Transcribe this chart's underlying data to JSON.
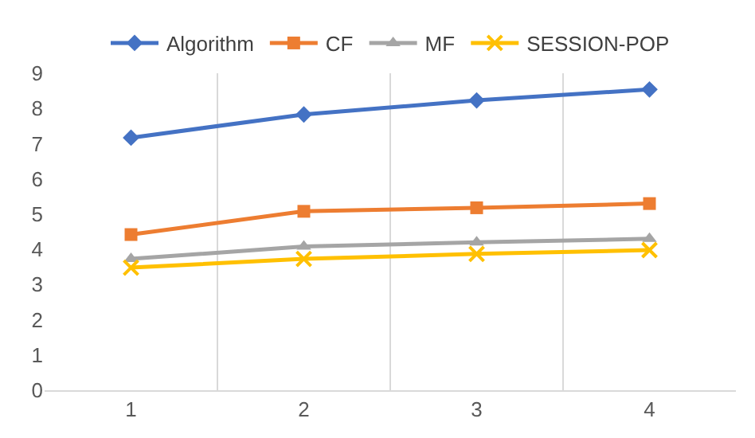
{
  "chart_data": {
    "type": "line",
    "categories": [
      "1",
      "2",
      "3",
      "4"
    ],
    "ylim": [
      0,
      9
    ],
    "yticks": [
      0,
      1,
      2,
      3,
      4,
      5,
      6,
      7,
      8,
      9
    ],
    "grid": "x",
    "legend": "top",
    "series": [
      {
        "name": "Algorithm",
        "color": "#4472c4",
        "marker": "diamond",
        "values": [
          7.17,
          7.83,
          8.23,
          8.54
        ]
      },
      {
        "name": "CF",
        "color": "#ed7d31",
        "marker": "square",
        "values": [
          4.42,
          5.08,
          5.18,
          5.3
        ]
      },
      {
        "name": "MF",
        "color": "#a5a5a5",
        "marker": "triangle",
        "values": [
          3.73,
          4.08,
          4.2,
          4.3
        ]
      },
      {
        "name": "SESSION-POP",
        "color": "#ffc000",
        "marker": "cross",
        "values": [
          3.48,
          3.73,
          3.87,
          3.98
        ]
      }
    ]
  }
}
